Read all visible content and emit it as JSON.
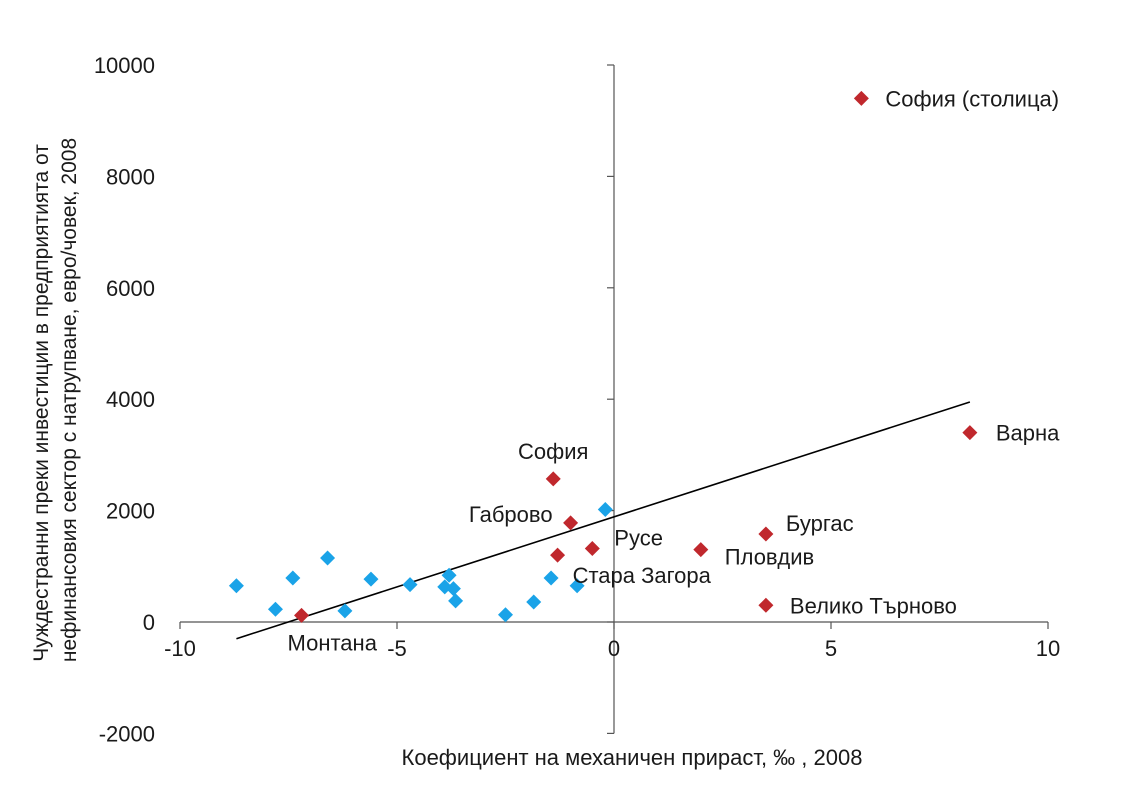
{
  "chart_data": {
    "type": "scatter",
    "title": "",
    "xlabel": "Коефициент на механичен прираст, ‰ , 2008",
    "ylabel_lines": [
      "Чуждестранни преки инвестиции в предприятията от",
      "нефинансовия сектор с натрупване, евро/човек, 2008"
    ],
    "xlim": [
      -10,
      10
    ],
    "ylim": [
      -2000,
      10000
    ],
    "x_ticks": [
      -10,
      -5,
      0,
      5,
      10
    ],
    "x_tick_labels": [
      "-10",
      "-5",
      "0",
      "5",
      "10"
    ],
    "y_ticks": [
      -2000,
      0,
      2000,
      4000,
      6000,
      8000,
      10000
    ],
    "y_tick_labels": [
      "-2000",
      "0",
      "2000",
      "4000",
      "6000",
      "8000",
      "10000"
    ],
    "grid": false,
    "colors": {
      "labeled": "#c0282d",
      "unlabeled": "#1aa3e8",
      "trend": "#000000",
      "axis": "#555555"
    },
    "series": [
      {
        "marker": "diamond",
        "color": "#c0282d",
        "points": [
          {
            "x": 5.7,
            "y": 9400,
            "label": "София (столица)"
          },
          {
            "x": 8.2,
            "y": 3400,
            "label": "Варна"
          },
          {
            "x": -1.4,
            "y": 2570,
            "label": "София"
          },
          {
            "x": -1.0,
            "y": 1780,
            "label": "Габрово"
          },
          {
            "x": -1.3,
            "y": 1200,
            "label": "Стара Загора"
          },
          {
            "x": -0.5,
            "y": 1320,
            "label": "Русе"
          },
          {
            "x": 2.0,
            "y": 1300,
            "label": "Пловдив"
          },
          {
            "x": 3.5,
            "y": 1580,
            "label": "Бургас"
          },
          {
            "x": 3.5,
            "y": 300,
            "label": "Велико Търново"
          },
          {
            "x": -7.2,
            "y": 120,
            "label": "Монтана"
          }
        ]
      },
      {
        "marker": "diamond",
        "color": "#1aa3e8",
        "points": [
          {
            "x": -8.7,
            "y": 650
          },
          {
            "x": -7.8,
            "y": 230
          },
          {
            "x": -7.4,
            "y": 790
          },
          {
            "x": -6.6,
            "y": 1150
          },
          {
            "x": -6.2,
            "y": 200
          },
          {
            "x": -5.6,
            "y": 770
          },
          {
            "x": -4.7,
            "y": 670
          },
          {
            "x": -3.9,
            "y": 630
          },
          {
            "x": -3.8,
            "y": 840
          },
          {
            "x": -3.7,
            "y": 600
          },
          {
            "x": -3.65,
            "y": 380
          },
          {
            "x": -2.5,
            "y": 130
          },
          {
            "x": -1.85,
            "y": 360
          },
          {
            "x": -1.45,
            "y": 790
          },
          {
            "x": -0.85,
            "y": 650
          },
          {
            "x": -0.2,
            "y": 2020
          }
        ]
      }
    ],
    "trendline": {
      "x": [
        -8.7,
        8.2
      ],
      "y": [
        -300,
        3950
      ]
    }
  }
}
